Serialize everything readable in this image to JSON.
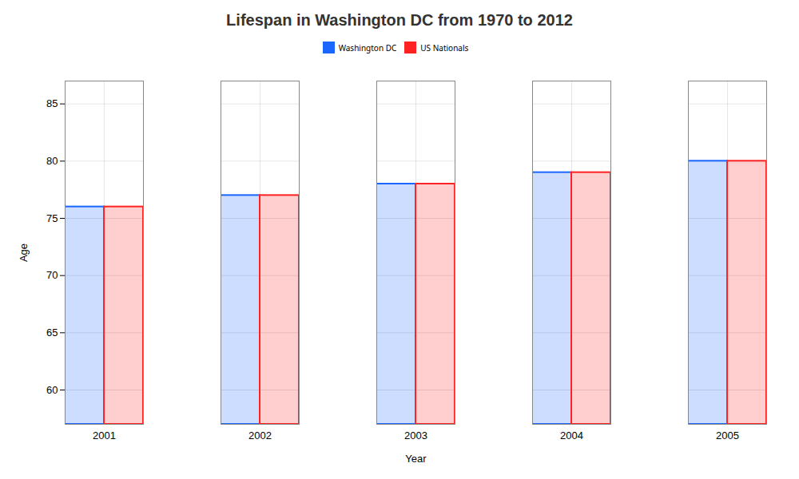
{
  "chart_data": {
    "type": "bar",
    "title": "Lifespan in Washington DC from 1970 to 2012",
    "xlabel": "Year",
    "ylabel": "Age",
    "categories": [
      "2001",
      "2002",
      "2003",
      "2004",
      "2005"
    ],
    "series": [
      {
        "name": "Washington DC",
        "color": "#1a66ff",
        "values": [
          76,
          77,
          78,
          79,
          80
        ]
      },
      {
        "name": "US Nationals",
        "color": "#ff2222",
        "values": [
          76,
          77,
          78,
          79,
          80
        ]
      }
    ],
    "ylim": [
      57,
      87
    ],
    "yticks": [
      60,
      65,
      70,
      75,
      80,
      85
    ],
    "grid": true,
    "legend": "top"
  }
}
